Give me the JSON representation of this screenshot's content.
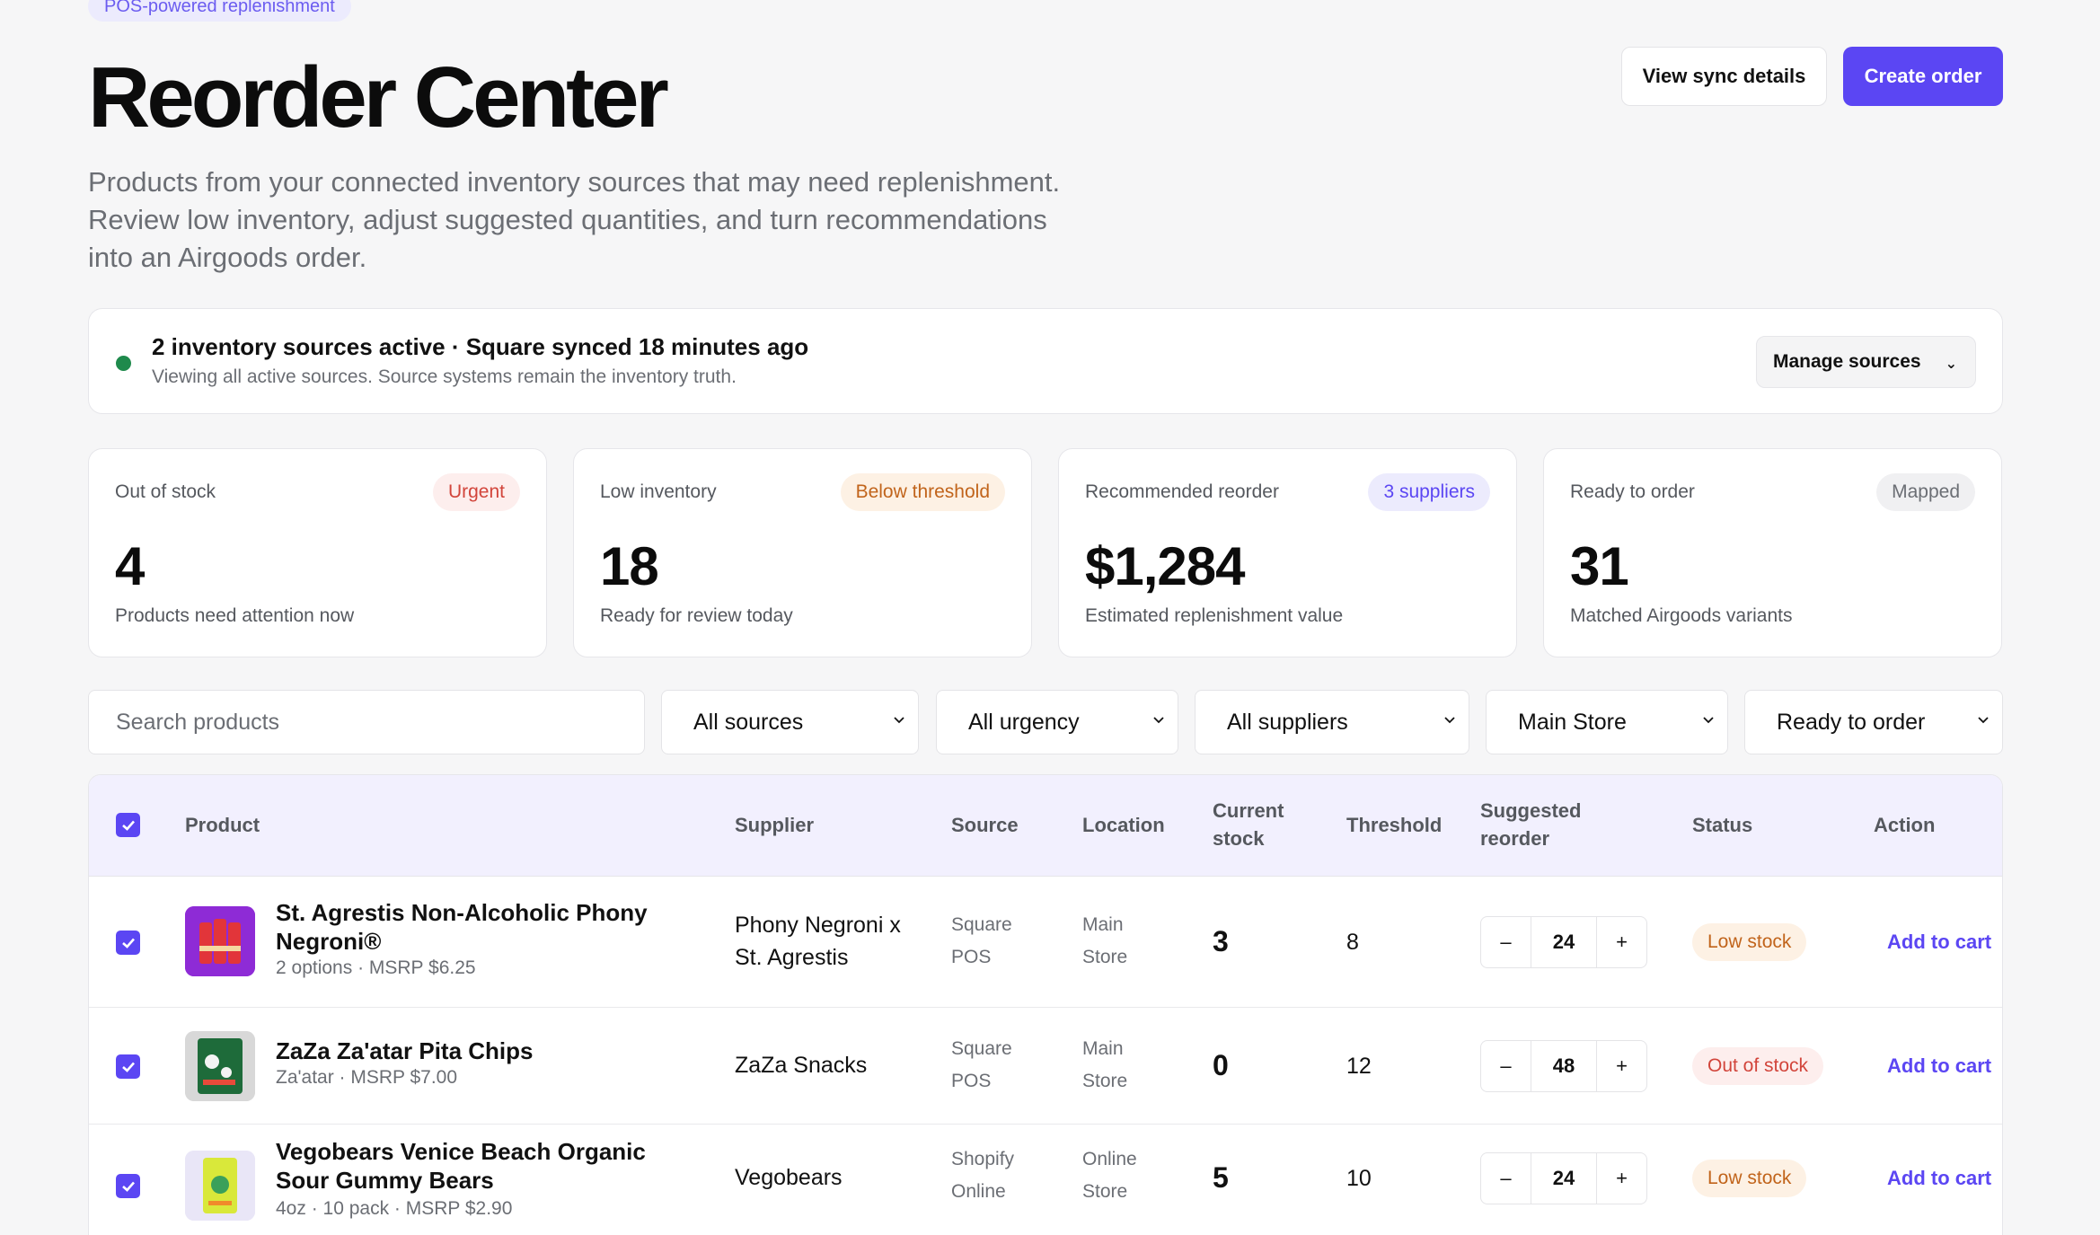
{
  "header": {
    "eyebrow": "POS-powered replenishment",
    "title": "Reorder Center",
    "description": "Products from your connected inventory sources that may need replenishment. Review low inventory, adjust suggested quantities, and turn recommendations into an Airgoods order.",
    "secondary_button": "View sync details",
    "primary_button": "Create order"
  },
  "sync": {
    "title": "2 inventory sources active · Square synced 18 minutes ago",
    "subtitle": "Viewing all active sources. Source systems remain the inventory truth.",
    "manage_label": "Manage sources",
    "status_color": "#1f8a4c"
  },
  "stats": [
    {
      "label": "Out of stock",
      "badge": "Urgent",
      "value": "4",
      "sub": "Products need attention now"
    },
    {
      "label": "Low inventory",
      "badge": "Below threshold",
      "value": "18",
      "sub": "Ready for review today"
    },
    {
      "label": "Recommended reorder",
      "badge": "3 suppliers",
      "value": "$1,284",
      "sub": "Estimated replenishment value"
    },
    {
      "label": "Ready to order",
      "badge": "Mapped",
      "value": "31",
      "sub": "Matched Airgoods variants"
    }
  ],
  "filters": {
    "search_placeholder": "Search products",
    "source": "All sources",
    "urgency": "All urgency",
    "supplier": "All suppliers",
    "location": "Main Store",
    "readiness": "Ready to order"
  },
  "table": {
    "columns": {
      "product": "Product",
      "supplier": "Supplier",
      "source": "Source",
      "location": "Location",
      "current_stock_1": "Current",
      "current_stock_2": "stock",
      "threshold": "Threshold",
      "suggested_1": "Suggested",
      "suggested_2": "reorder",
      "status": "Status",
      "action": "Action"
    },
    "rows": [
      {
        "name": "St. Agrestis Non-Alcoholic Phony Negroni®",
        "meta": "2 options · MSRP $6.25",
        "supplier": "Phony Negroni x St. Agrestis",
        "source": "Square POS",
        "location": "Main Store",
        "stock": "3",
        "threshold": "8",
        "qty": "24",
        "status": "Low stock",
        "action": "Add to cart",
        "thumb_color": "#8e2bd6"
      },
      {
        "name": "ZaZa Za'atar Pita Chips",
        "meta": "Za'atar · MSRP $7.00",
        "supplier": "ZaZa Snacks",
        "source": "Square POS",
        "location": "Main Store",
        "stock": "0",
        "threshold": "12",
        "qty": "48",
        "status": "Out of stock",
        "action": "Add to cart",
        "thumb_color": "#1e6b3a"
      },
      {
        "name": "Vegobears Venice Beach Organic Sour Gummy Bears",
        "meta": "4oz · 10 pack · MSRP $2.90",
        "supplier": "Vegobears",
        "source": "Shopify Online",
        "location": "Online Store",
        "stock": "5",
        "threshold": "10",
        "qty": "24",
        "status": "Low stock",
        "action": "Add to cart",
        "thumb_color": "#d9e83a"
      }
    ],
    "step_minus": "–",
    "step_plus": "+"
  },
  "colors": {
    "accent": "#5b46f3",
    "urgent": "#d2453b",
    "warning": "#c1641b"
  }
}
